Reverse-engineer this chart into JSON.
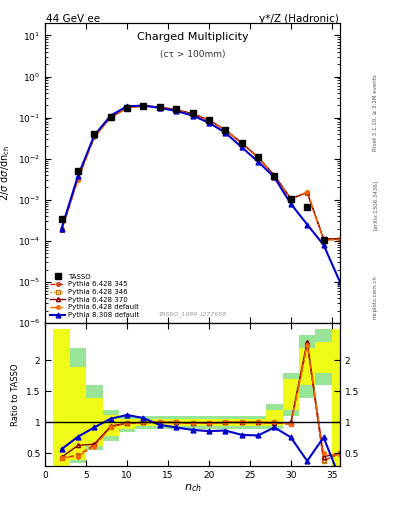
{
  "title_top": "44 GeV ee",
  "title_right": "γ*/Z (Hadronic)",
  "plot_title": "Charged Multiplicity",
  "plot_subtitle": "(cτ > 100mm)",
  "ylabel_main": "2/σ dσ/dn_{ch}",
  "ylabel_ratio": "Ratio to TASSO",
  "watermark": "TASSO_1989_I277658",
  "right_label1": "Rivet 3.1.10, ≥ 3.2M events",
  "right_label2": "[arXiv:1306.3436]",
  "right_label3": "mcplots.cern.ch",
  "tasso_x": [
    2,
    4,
    6,
    8,
    10,
    12,
    14,
    16,
    18,
    20,
    22,
    24,
    26,
    28,
    30,
    32,
    34
  ],
  "tasso_y": [
    0.00035,
    0.005,
    0.04,
    0.105,
    0.175,
    0.195,
    0.182,
    0.158,
    0.128,
    0.088,
    0.05,
    0.024,
    0.0108,
    0.0038,
    0.00105,
    0.00065,
    0.000105
  ],
  "py345_x": [
    2,
    4,
    6,
    8,
    10,
    12,
    14,
    16,
    18,
    20,
    22,
    24,
    26,
    28,
    30,
    32,
    34,
    36
  ],
  "py345_y": [
    0.00018,
    0.0032,
    0.035,
    0.1,
    0.172,
    0.193,
    0.18,
    0.155,
    0.124,
    0.086,
    0.05,
    0.024,
    0.0107,
    0.0039,
    0.00105,
    0.0015,
    0.00011,
    0.00011
  ],
  "py346_x": [
    2,
    4,
    6,
    8,
    10,
    12,
    14,
    16,
    18,
    20,
    22,
    24,
    26,
    28,
    30,
    32,
    34,
    36
  ],
  "py346_y": [
    0.00018,
    0.0032,
    0.035,
    0.1,
    0.172,
    0.193,
    0.18,
    0.155,
    0.124,
    0.086,
    0.05,
    0.024,
    0.0107,
    0.0039,
    0.00105,
    0.0015,
    0.00011,
    0.00011
  ],
  "py370_x": [
    2,
    4,
    6,
    8,
    10,
    12,
    14,
    16,
    18,
    20,
    22,
    24,
    26,
    28,
    30,
    32,
    34,
    36
  ],
  "py370_y": [
    0.00019,
    0.0034,
    0.036,
    0.101,
    0.173,
    0.194,
    0.181,
    0.156,
    0.125,
    0.087,
    0.0505,
    0.0242,
    0.0108,
    0.00392,
    0.00106,
    0.00152,
    0.000112,
    0.000112
  ],
  "pydef_x": [
    2,
    4,
    6,
    8,
    10,
    12,
    14,
    16,
    18,
    20,
    22,
    24,
    26,
    28,
    30,
    32,
    34,
    36
  ],
  "pydef_y": [
    0.00018,
    0.003,
    0.033,
    0.098,
    0.17,
    0.192,
    0.179,
    0.154,
    0.123,
    0.085,
    0.0495,
    0.0238,
    0.0106,
    0.0038,
    0.00103,
    0.00155,
    0.000105,
    0.000105
  ],
  "py8def_x": [
    2,
    4,
    6,
    8,
    10,
    12,
    14,
    16,
    18,
    20,
    22,
    24,
    26,
    28,
    30,
    32,
    34,
    36
  ],
  "py8def_y": [
    0.0002,
    0.0038,
    0.037,
    0.112,
    0.188,
    0.196,
    0.172,
    0.145,
    0.112,
    0.075,
    0.043,
    0.019,
    0.0085,
    0.0035,
    0.0008,
    0.00025,
    8e-05,
    1e-05
  ],
  "ratio_green_edges": [
    1,
    3,
    5,
    7,
    9,
    11,
    13,
    15,
    17,
    19,
    21,
    23,
    25,
    27,
    29,
    31,
    33,
    35,
    37
  ],
  "ratio_green_lo": [
    0.3,
    0.35,
    0.55,
    0.7,
    0.85,
    0.9,
    0.9,
    0.9,
    0.9,
    0.9,
    0.9,
    0.9,
    0.9,
    0.9,
    1.1,
    1.4,
    1.6,
    0.3
  ],
  "ratio_green_hi": [
    2.5,
    2.2,
    1.6,
    1.2,
    1.1,
    1.1,
    1.1,
    1.1,
    1.1,
    1.1,
    1.1,
    1.1,
    1.1,
    1.3,
    1.8,
    2.4,
    2.5,
    2.5
  ],
  "ratio_yellow_lo": [
    0.3,
    0.4,
    0.62,
    0.78,
    0.9,
    0.95,
    0.95,
    0.95,
    0.95,
    0.95,
    0.95,
    0.95,
    0.95,
    0.95,
    1.2,
    1.6,
    1.8,
    0.3
  ],
  "ratio_yellow_hi": [
    2.5,
    1.9,
    1.4,
    1.12,
    1.05,
    1.05,
    1.05,
    1.05,
    1.05,
    1.05,
    1.05,
    1.05,
    1.05,
    1.2,
    1.7,
    2.2,
    2.3,
    2.5
  ],
  "ratio_x": [
    2,
    4,
    6,
    8,
    10,
    12,
    14,
    16,
    18,
    20,
    22,
    24,
    26,
    28,
    30,
    32,
    34,
    36
  ],
  "ratio_py345": [
    0.43,
    0.47,
    0.64,
    0.93,
    0.99,
    1.0,
    1.0,
    1.0,
    0.99,
    0.99,
    1.0,
    1.0,
    1.0,
    1.0,
    0.97,
    2.25,
    0.38,
    0.5
  ],
  "ratio_py346": [
    0.43,
    0.47,
    0.64,
    0.93,
    0.99,
    1.0,
    1.0,
    1.0,
    0.99,
    0.99,
    1.0,
    1.0,
    1.0,
    1.0,
    0.97,
    2.25,
    0.38,
    0.5
  ],
  "ratio_py370": [
    0.44,
    0.63,
    0.65,
    0.94,
    0.99,
    1.0,
    1.0,
    1.0,
    0.99,
    0.99,
    1.0,
    1.0,
    1.0,
    0.99,
    1.0,
    2.3,
    0.45,
    0.5
  ],
  "ratio_pydef": [
    0.43,
    0.45,
    0.61,
    0.92,
    0.99,
    1.0,
    1.0,
    1.0,
    0.99,
    0.99,
    1.0,
    1.0,
    1.0,
    1.0,
    0.97,
    2.25,
    0.5,
    0.48
  ],
  "ratio_py8def": [
    0.57,
    0.77,
    0.92,
    1.06,
    1.12,
    1.07,
    0.96,
    0.92,
    0.88,
    0.86,
    0.87,
    0.8,
    0.79,
    0.92,
    0.76,
    0.38,
    0.76,
    0.1
  ],
  "color_py345": "#cc2200",
  "color_py346": "#cc7700",
  "color_py370": "#880000",
  "color_pydef": "#ff6600",
  "color_py8def": "#0000cc",
  "color_tasso": "#000000",
  "bg_color": "#ffffff",
  "ylim_main": [
    1e-06,
    20.0
  ],
  "ylim_ratio": [
    0.3,
    2.6
  ],
  "xlim": [
    0,
    36
  ]
}
